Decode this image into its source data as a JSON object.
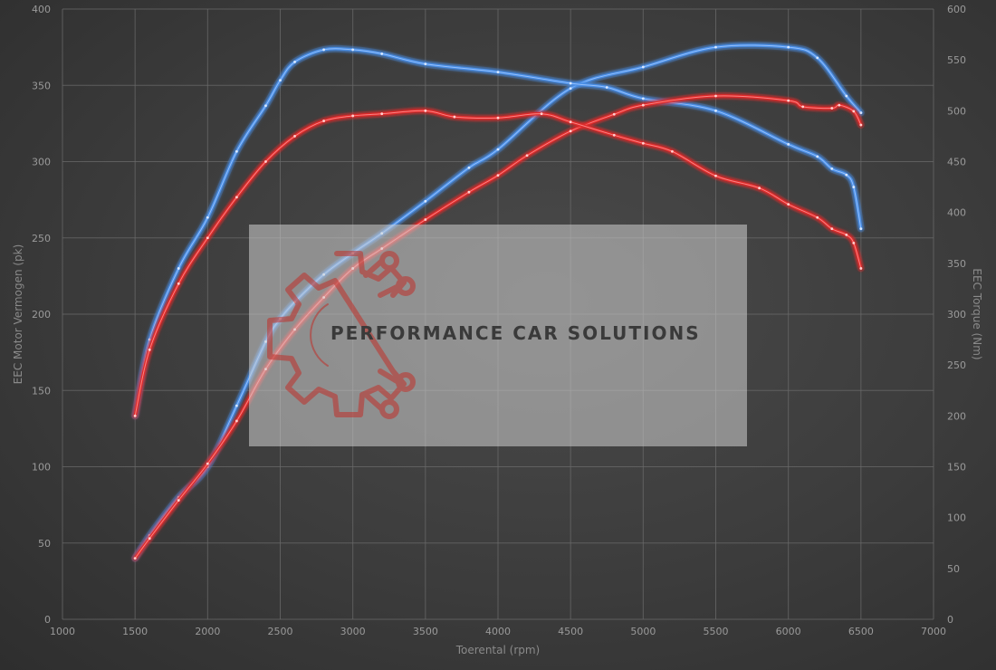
{
  "chart_data": {
    "type": "line",
    "xlabel": "Toerental (rpm)",
    "ylabel_left": "EEC Motor Vermogen (pk)",
    "ylabel_right": "EEC Torque (Nm)",
    "xlim": [
      1000,
      7000
    ],
    "x_ticks": [
      1000,
      1500,
      2000,
      2500,
      3000,
      3500,
      4000,
      4500,
      5000,
      5500,
      6000,
      6500,
      7000
    ],
    "ylim_left": [
      0,
      400
    ],
    "y_ticks_left": [
      0,
      50,
      100,
      150,
      200,
      250,
      300,
      350,
      400
    ],
    "ylim_right": [
      0,
      600
    ],
    "y_ticks_right": [
      0,
      50,
      100,
      150,
      200,
      250,
      300,
      350,
      400,
      450,
      500,
      550,
      600
    ],
    "grid": true,
    "colors": {
      "tuned": "#4a8ee6",
      "stock": "#e02a2a"
    },
    "series": [
      {
        "key": "power_tuned",
        "axis": "left",
        "color": "#4a8ee6",
        "x": [
          1500,
          1600,
          1800,
          2000,
          2200,
          2400,
          2500,
          2600,
          2800,
          3000,
          3200,
          3500,
          3800,
          4000,
          4500,
          5000,
          5500,
          6000,
          6200,
          6400,
          6500
        ],
        "y": [
          40,
          55,
          80,
          100,
          140,
          182,
          197,
          208,
          226,
          240,
          253,
          274,
          296,
          308,
          348,
          362,
          375,
          375,
          368,
          343,
          332
        ]
      },
      {
        "key": "torque_tuned",
        "axis": "right",
        "color": "#4a8ee6",
        "x": [
          1500,
          1600,
          1800,
          2000,
          2200,
          2400,
          2500,
          2600,
          2800,
          3000,
          3200,
          3500,
          4000,
          4500,
          4750,
          5000,
          5500,
          6000,
          6200,
          6300,
          6400,
          6450,
          6500
        ],
        "y": [
          200,
          275,
          345,
          395,
          460,
          505,
          530,
          548,
          560,
          560,
          556,
          546,
          538,
          527,
          523,
          512,
          500,
          467,
          455,
          443,
          437,
          425,
          384
        ]
      },
      {
        "key": "power_stock",
        "axis": "left",
        "color": "#e02a2a",
        "x": [
          1500,
          1600,
          1800,
          2000,
          2200,
          2400,
          2600,
          2800,
          3000,
          3200,
          3500,
          3800,
          4000,
          4200,
          4500,
          4800,
          5000,
          5500,
          6000,
          6100,
          6300,
          6350,
          6450,
          6500
        ],
        "y": [
          40,
          53,
          78,
          102,
          130,
          164,
          190,
          211,
          230,
          243,
          262,
          280,
          291,
          304,
          320,
          331,
          337,
          343,
          340,
          336,
          335,
          337,
          333,
          324
        ]
      },
      {
        "key": "torque_stock",
        "axis": "right",
        "color": "#e02a2a",
        "x": [
          1500,
          1600,
          1800,
          2000,
          2200,
          2400,
          2600,
          2800,
          3000,
          3200,
          3500,
          3700,
          4000,
          4300,
          4500,
          4800,
          5000,
          5200,
          5500,
          5800,
          6000,
          6200,
          6300,
          6400,
          6450,
          6500
        ],
        "y": [
          200,
          265,
          330,
          375,
          415,
          450,
          475,
          490,
          495,
          497,
          500,
          494,
          493,
          497,
          489,
          476,
          468,
          460,
          436,
          424,
          408,
          395,
          384,
          378,
          370,
          345
        ]
      }
    ]
  },
  "watermark": {
    "text": "PERFORMANCE CAR SOLUTIONS",
    "logo_icon": "gear-circuit-logo-icon"
  }
}
